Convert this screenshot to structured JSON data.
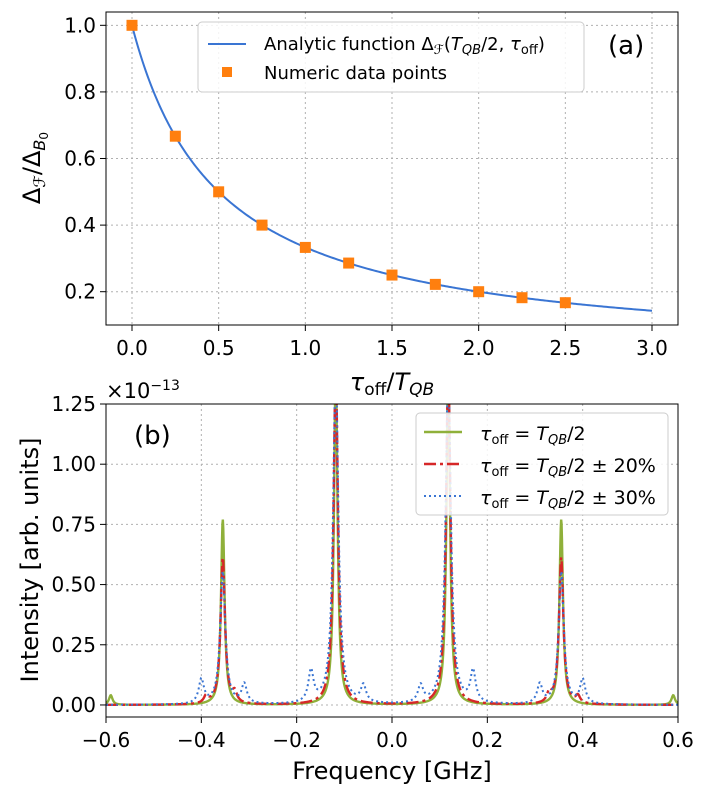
{
  "chart_data": [
    {
      "type": "line",
      "panel_label": "(a)",
      "xlabel": "τ_off/T_QB",
      "ylabel": "Δ_F/Δ_B0",
      "xlim": [
        -0.15,
        3.15
      ],
      "ylim": [
        0.1,
        1.04
      ],
      "xticks": [
        0.0,
        0.5,
        1.0,
        1.5,
        2.0,
        2.5,
        3.0
      ],
      "xtick_labels": [
        "0.0",
        "0.5",
        "1.0",
        "1.5",
        "2.0",
        "2.5",
        "3.0"
      ],
      "yticks": [
        0.2,
        0.4,
        0.6,
        0.8,
        1.0
      ],
      "ytick_labels": [
        "0.2",
        "0.4",
        "0.6",
        "0.8",
        "1.0"
      ],
      "grid": true,
      "legend_position": "top-right",
      "series": [
        {
          "name": "Analytic function Δ_F(T_QB/2, τ_off)",
          "style": "line",
          "color": "#3a75d3",
          "function": "1/(1+2x)",
          "x_range": [
            0.0,
            3.0
          ]
        },
        {
          "name": "Numeric data points",
          "style": "square-marker",
          "color": "#ff7f0e",
          "x": [
            0.0,
            0.25,
            0.5,
            0.75,
            1.0,
            1.25,
            1.5,
            1.75,
            2.0,
            2.25,
            2.5
          ],
          "y": [
            1.0,
            0.667,
            0.5,
            0.4,
            0.333,
            0.286,
            0.25,
            0.222,
            0.2,
            0.182,
            0.167
          ]
        }
      ]
    },
    {
      "type": "line",
      "panel_label": "(b)",
      "xlabel": "Frequency [GHz]",
      "ylabel": "Intensity [arb. units]",
      "y_offset_label": "×10⁻¹³",
      "xlim": [
        -0.6,
        0.6
      ],
      "ylim": [
        -0.05,
        1.25
      ],
      "xticks": [
        -0.6,
        -0.4,
        -0.2,
        0.0,
        0.2,
        0.4,
        0.6
      ],
      "xtick_labels": [
        "−0.6",
        "−0.4",
        "−0.2",
        "0.0",
        "0.2",
        "0.4",
        "0.6"
      ],
      "yticks": [
        0.0,
        0.25,
        0.5,
        0.75,
        1.0,
        1.25
      ],
      "ytick_labels": [
        "0.00",
        "0.25",
        "0.50",
        "0.75",
        "1.00",
        "1.25"
      ],
      "grid": true,
      "legend_position": "top-right",
      "series": [
        {
          "name": "τ_off = T_QB/2",
          "style": "solid",
          "color": "#8fb03a",
          "peaks": [
            {
              "x": -0.59,
              "height": 0.04
            },
            {
              "x": -0.355,
              "height": 0.77
            },
            {
              "x": -0.118,
              "height": 1.4
            },
            {
              "x": 0.118,
              "height": 1.4
            },
            {
              "x": 0.355,
              "height": 0.77
            },
            {
              "x": 0.59,
              "height": 0.04
            }
          ]
        },
        {
          "name": "τ_off = T_QB/2 ± 20%",
          "style": "dashdot",
          "color": "#d62728",
          "peaks": [
            {
              "x": -0.355,
              "height": 0.61
            },
            {
              "x": -0.118,
              "height": 1.4
            },
            {
              "x": 0.118,
              "height": 1.4
            },
            {
              "x": 0.355,
              "height": 0.61
            },
            {
              "x": -0.33,
              "height": 0.04
            },
            {
              "x": -0.39,
              "height": 0.03
            },
            {
              "x": 0.33,
              "height": 0.04
            },
            {
              "x": 0.39,
              "height": 0.03
            }
          ]
        },
        {
          "name": "τ_off = T_QB/2 ± 30%",
          "style": "dotted",
          "color": "#3a75d3",
          "peaks": [
            {
              "x": -0.355,
              "height": 0.55
            },
            {
              "x": -0.118,
              "height": 1.4
            },
            {
              "x": 0.118,
              "height": 1.4
            },
            {
              "x": 0.355,
              "height": 0.55
            },
            {
              "x": -0.4,
              "height": 0.1
            },
            {
              "x": -0.31,
              "height": 0.08
            },
            {
              "x": -0.17,
              "height": 0.13
            },
            {
              "x": -0.06,
              "height": 0.07
            },
            {
              "x": 0.06,
              "height": 0.07
            },
            {
              "x": 0.17,
              "height": 0.13
            },
            {
              "x": 0.31,
              "height": 0.08
            },
            {
              "x": 0.4,
              "height": 0.1
            }
          ]
        }
      ]
    }
  ]
}
